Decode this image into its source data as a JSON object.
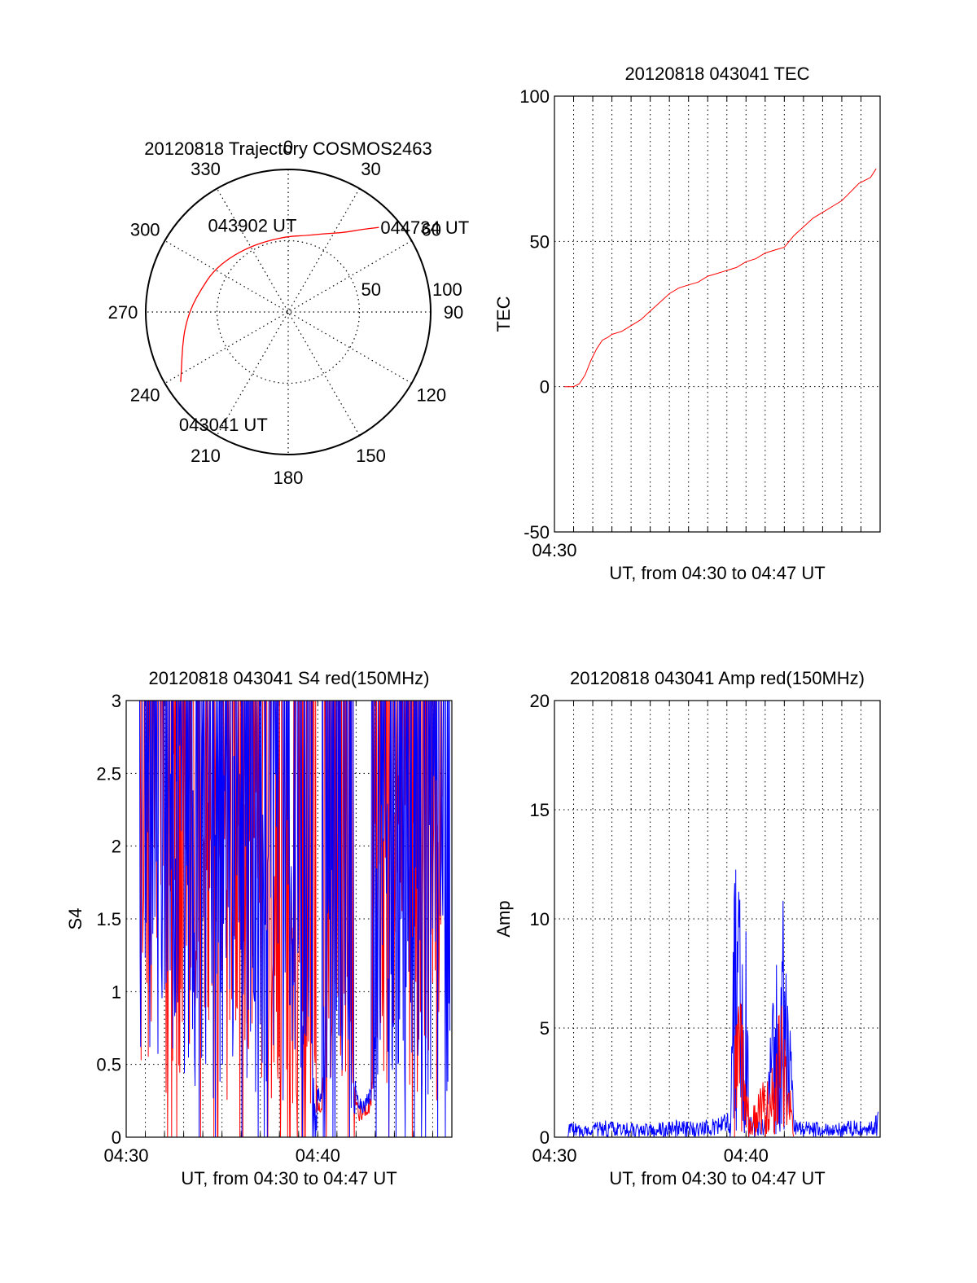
{
  "chart_data": [
    {
      "type": "polar",
      "title": "20120818 Trajectory COSMOS2463",
      "angle_labels": [
        "0",
        "30",
        "60",
        "90",
        "120",
        "150",
        "180",
        "210",
        "240",
        "270",
        "300",
        "330"
      ],
      "radial_labels": [
        "50",
        "100"
      ],
      "radial_max": 100,
      "grid": true,
      "series": [
        {
          "color": "#ff0000",
          "points": [
            {
              "az": 237,
              "r": 90
            },
            {
              "az": 243,
              "r": 84
            },
            {
              "az": 252,
              "r": 78
            },
            {
              "az": 262,
              "r": 73
            },
            {
              "az": 273,
              "r": 68
            },
            {
              "az": 285,
              "r": 63
            },
            {
              "az": 298,
              "r": 60
            },
            {
              "az": 313,
              "r": 56
            },
            {
              "az": 329,
              "r": 53
            },
            {
              "az": 345,
              "r": 52
            },
            {
              "az": 360,
              "r": 53
            },
            {
              "az": 13,
              "r": 55
            },
            {
              "az": 24,
              "r": 60
            },
            {
              "az": 34,
              "r": 67
            },
            {
              "az": 42,
              "r": 78
            },
            {
              "az": 47,
              "r": 87
            }
          ]
        }
      ],
      "annotations": [
        {
          "text": "044734 UT",
          "az": 47,
          "r": 87
        },
        {
          "text": "043902 UT",
          "az": 335,
          "r": 52
        },
        {
          "text": "043041 UT",
          "az": 237,
          "r": 90
        }
      ]
    },
    {
      "type": "line",
      "title": "20120818 043041 TEC",
      "xlabel": "UT, from 04:30 to 04:47 UT",
      "ylabel": "TEC",
      "xlim": [
        0,
        17
      ],
      "ylim": [
        -50,
        100
      ],
      "yticks": [
        -50,
        0,
        50,
        100
      ],
      "xtick_labels": [
        {
          "x": 0,
          "label": "04:30"
        }
      ],
      "grid": true,
      "series": [
        {
          "color": "#ff0000",
          "x": [
            0.51,
            0.7,
            1.0,
            1.3,
            1.6,
            1.9,
            2.2,
            2.5,
            2.8,
            3.0,
            3.5,
            4.0,
            4.5,
            5.0,
            5.5,
            6.0,
            6.5,
            7.0,
            7.5,
            8.0,
            8.5,
            9.0,
            9.5,
            10.0,
            10.5,
            11.0,
            11.5,
            12.0,
            12.5,
            13.0,
            13.5,
            14.0,
            14.5,
            15.0,
            15.3,
            15.6,
            15.9,
            16.2,
            16.5,
            16.79
          ],
          "y": [
            0,
            0,
            0,
            1,
            4,
            9,
            13,
            16,
            17,
            18,
            19,
            21,
            23,
            26,
            29,
            32,
            34,
            35,
            36,
            38,
            39,
            40,
            41,
            43,
            44,
            46,
            47,
            48,
            52,
            55,
            58,
            60,
            62,
            64,
            66,
            68,
            70,
            71,
            72,
            75
          ]
        }
      ]
    },
    {
      "type": "line",
      "title": "20120818 043041 S4 red(150MHz)",
      "xlabel": "UT, from 04:30 to 04:47 UT",
      "ylabel": "S4",
      "xlim": [
        0,
        17
      ],
      "ylim": [
        0,
        3
      ],
      "yticks": [
        0,
        0.5,
        1,
        1.5,
        2,
        2.5,
        3
      ],
      "ytick_labels": [
        "0",
        "0.5",
        "1",
        "1.5",
        "2",
        "2.5",
        "3"
      ],
      "xtick_labels": [
        {
          "x": 0,
          "label": "04:30"
        },
        {
          "x": 10,
          "label": "04:40"
        }
      ],
      "grid": true,
      "series": [
        {
          "color": "#ff0000",
          "x": [
            0.7,
            1.0,
            1.5,
            2.0,
            2.5,
            3.0,
            3.5,
            4.0,
            4.5,
            5.0,
            5.5,
            6.0,
            6.5,
            7.0,
            7.5,
            8.0,
            8.5,
            9.0,
            9.5,
            10.0,
            10.2,
            10.5,
            11.0,
            11.5,
            12.0,
            12.3,
            12.5,
            12.8,
            13.0,
            13.5,
            14.0,
            14.5,
            15.0,
            15.5,
            16.0,
            16.5
          ],
          "y": [
            2.4,
            2.6,
            2.2,
            2.5,
            2.7,
            2.3,
            2.6,
            2.8,
            2.4,
            2.6,
            2.5,
            2.3,
            2.7,
            2.5,
            2.4,
            2.2,
            2.0,
            1.6,
            1.5,
            0.2,
            0.18,
            1.7,
            1.8,
            1.5,
            0.2,
            0.15,
            0.18,
            0.25,
            2.6,
            2.4,
            2.7,
            2.5,
            2.8,
            2.4,
            2.3,
            2.6
          ]
        },
        {
          "color": "#0000ff",
          "x": [
            0.7,
            1.0,
            1.5,
            2.0,
            2.5,
            3.0,
            3.5,
            4.0,
            4.5,
            5.0,
            5.5,
            6.0,
            6.5,
            7.0,
            7.5,
            8.0,
            8.5,
            9.0,
            9.5,
            10.0,
            10.2,
            10.5,
            11.0,
            11.5,
            12.0,
            12.3,
            12.5,
            12.8,
            13.0,
            13.5,
            14.0,
            14.5,
            15.0,
            15.5,
            16.0,
            16.5,
            16.9
          ],
          "y": [
            2.7,
            2.8,
            2.5,
            2.7,
            2.6,
            2.8,
            2.7,
            2.9,
            2.6,
            2.7,
            2.8,
            2.6,
            2.9,
            2.7,
            2.6,
            2.5,
            2.4,
            1.9,
            1.2,
            0.3,
            0.3,
            2.4,
            1.5,
            1.2,
            0.3,
            0.2,
            0.25,
            0.3,
            2.8,
            2.6,
            2.9,
            2.7,
            2.8,
            2.5,
            2.6,
            2.4,
            1.0
          ]
        }
      ]
    },
    {
      "type": "line",
      "title": "20120818 043041 Amp red(150MHz)",
      "xlabel": "UT, from 04:30 to 04:47 UT",
      "ylabel": "Amp",
      "xlim": [
        0,
        17
      ],
      "ylim": [
        0,
        20
      ],
      "yticks": [
        0,
        5,
        10,
        15,
        20
      ],
      "xtick_labels": [
        {
          "x": 0,
          "label": "04:30"
        },
        {
          "x": 10,
          "label": "04:40"
        }
      ],
      "grid": true,
      "series": [
        {
          "color": "#0000ff",
          "x": [
            0.7,
            1.5,
            2.5,
            3.5,
            4.5,
            5.5,
            6.5,
            7.5,
            8.5,
            9.2,
            9.4,
            9.6,
            9.8,
            10.0,
            10.2,
            10.5,
            11.0,
            11.5,
            11.8,
            12.0,
            12.2,
            12.5,
            12.8,
            13.5,
            14.5,
            15.5,
            16.5,
            16.9
          ],
          "y": [
            0.7,
            0.6,
            0.8,
            0.7,
            0.6,
            0.7,
            0.8,
            0.7,
            0.9,
            1.2,
            14.5,
            12.5,
            9.0,
            13.3,
            1.0,
            1.0,
            0.8,
            8.0,
            9.5,
            11.5,
            7.5,
            1.0,
            0.8,
            0.7,
            0.6,
            0.8,
            0.7,
            1.2
          ]
        },
        {
          "color": "#ff0000",
          "x": [
            9.4,
            9.6,
            9.8,
            10.0,
            10.2,
            11.5,
            11.8,
            12.0,
            12.2,
            12.5
          ],
          "y": [
            5.0,
            8.0,
            6.0,
            3.5,
            1.0,
            4.0,
            6.5,
            5.0,
            3.0,
            1.0
          ]
        }
      ]
    }
  ]
}
